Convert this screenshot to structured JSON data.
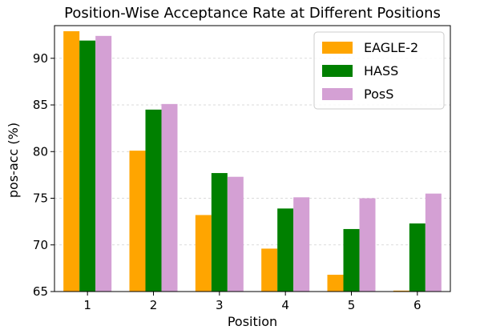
{
  "chart_data": {
    "type": "bar",
    "title": "Position-Wise Acceptance Rate at Different Positions",
    "xlabel": "Position",
    "ylabel": "pos-acc (%)",
    "categories": [
      "1",
      "2",
      "3",
      "4",
      "5",
      "6"
    ],
    "ylim": [
      65,
      93.5
    ],
    "yticks": [
      65,
      70,
      75,
      80,
      85,
      90
    ],
    "grid": true,
    "legend_position": "top-right",
    "series": [
      {
        "name": "EAGLE-2",
        "color": "#ffa500",
        "values": [
          92.9,
          80.1,
          73.2,
          69.6,
          66.8,
          65.1
        ]
      },
      {
        "name": "HASS",
        "color": "#008000",
        "values": [
          91.9,
          84.5,
          77.7,
          73.9,
          71.7,
          72.3
        ]
      },
      {
        "name": "PosS",
        "color": "#d4a0d4",
        "values": [
          92.4,
          85.1,
          77.3,
          75.1,
          75.0,
          75.5
        ]
      }
    ]
  }
}
